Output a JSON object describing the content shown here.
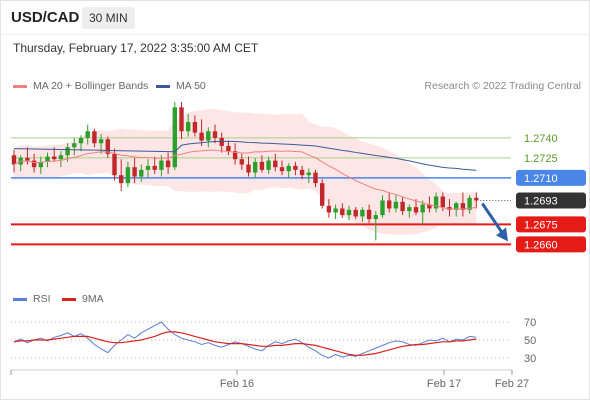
{
  "header": {
    "symbol": "USD/CAD",
    "timeframe": "30 MIN",
    "datetime": "Thursday, February 17, 2022 3:35:00 AM CET",
    "copyright": "Research © 2022 Trading Central"
  },
  "legend": {
    "bollinger": "MA 20 + Bollinger Bands",
    "ma50": "MA 50",
    "rsi": "RSI",
    "ma9": "9MA"
  },
  "colors": {
    "up": "#2ca02c",
    "down": "#c0282c",
    "bollinger": "#f4b3b3",
    "ma50": "#3a5a98",
    "support": "#e41b17",
    "pivot": "#4a86e8",
    "resistance": "#a8cf8a",
    "arrow": "#2e5fa8",
    "rsi": "#5b7fd6",
    "rsi_ma": "#d8231f"
  },
  "chart_data": {
    "type": "candlestick",
    "price_ylim": [
      1.264,
      1.2767
    ],
    "levels": [
      {
        "value": 1.274,
        "label": "1.2740",
        "kind": "resistance"
      },
      {
        "value": 1.2725,
        "label": "1.2725",
        "kind": "resistance"
      },
      {
        "value": 1.271,
        "label": "1.2710",
        "kind": "pivot"
      },
      {
        "value": 1.2693,
        "label": "1.2693",
        "kind": "current"
      },
      {
        "value": 1.2675,
        "label": "1.2675",
        "kind": "support"
      },
      {
        "value": 1.266,
        "label": "1.2660",
        "kind": "support"
      }
    ],
    "x_ticks": [
      "Feb 16",
      "Feb 17",
      "Feb 27"
    ],
    "rsi_ticks": [
      70,
      50,
      30
    ],
    "forecast": {
      "from": 1.2693,
      "to": 1.266
    },
    "candles": [
      [
        1.2727,
        1.2731,
        1.2714,
        1.272
      ],
      [
        1.272,
        1.2727,
        1.2715,
        1.2725
      ],
      [
        1.2725,
        1.2733,
        1.272,
        1.2723
      ],
      [
        1.2723,
        1.2728,
        1.2714,
        1.2718
      ],
      [
        1.2718,
        1.2726,
        1.2713,
        1.2722
      ],
      [
        1.2722,
        1.2729,
        1.2718,
        1.2726
      ],
      [
        1.2726,
        1.2733,
        1.2722,
        1.2724
      ],
      [
        1.2724,
        1.273,
        1.2718,
        1.2727
      ],
      [
        1.2727,
        1.2736,
        1.2722,
        1.2733
      ],
      [
        1.2733,
        1.274,
        1.2727,
        1.2736
      ],
      [
        1.2736,
        1.2742,
        1.273,
        1.274
      ],
      [
        1.274,
        1.275,
        1.2735,
        1.2745
      ],
      [
        1.2745,
        1.2747,
        1.2733,
        1.2736
      ],
      [
        1.2736,
        1.2743,
        1.2728,
        1.2739
      ],
      [
        1.2739,
        1.2741,
        1.2725,
        1.2728
      ],
      [
        1.2728,
        1.2732,
        1.2708,
        1.2712
      ],
      [
        1.2712,
        1.2724,
        1.27,
        1.2706
      ],
      [
        1.2706,
        1.2722,
        1.2703,
        1.2718
      ],
      [
        1.2718,
        1.2725,
        1.2706,
        1.2711
      ],
      [
        1.2711,
        1.272,
        1.2707,
        1.2716
      ],
      [
        1.2716,
        1.2724,
        1.271,
        1.2719
      ],
      [
        1.2719,
        1.2726,
        1.2713,
        1.2716
      ],
      [
        1.2716,
        1.2727,
        1.2711,
        1.2723
      ],
      [
        1.2723,
        1.2729,
        1.2713,
        1.2718
      ],
      [
        1.2718,
        1.2767,
        1.2716,
        1.2763
      ],
      [
        1.2763,
        1.2767,
        1.2739,
        1.2745
      ],
      [
        1.2745,
        1.2758,
        1.2741,
        1.2752
      ],
      [
        1.2752,
        1.2757,
        1.2741,
        1.2744
      ],
      [
        1.2744,
        1.2754,
        1.2734,
        1.2738
      ],
      [
        1.2738,
        1.2748,
        1.2733,
        1.2745
      ],
      [
        1.2745,
        1.275,
        1.2736,
        1.274
      ],
      [
        1.274,
        1.2744,
        1.2729,
        1.2734
      ],
      [
        1.2734,
        1.2738,
        1.2727,
        1.273
      ],
      [
        1.273,
        1.2736,
        1.272,
        1.2724
      ],
      [
        1.2724,
        1.2728,
        1.2716,
        1.272
      ],
      [
        1.272,
        1.2726,
        1.2711,
        1.2714
      ],
      [
        1.2714,
        1.2725,
        1.271,
        1.2722
      ],
      [
        1.2722,
        1.2727,
        1.2714,
        1.2716
      ],
      [
        1.2716,
        1.2726,
        1.2713,
        1.2723
      ],
      [
        1.2723,
        1.2728,
        1.2715,
        1.2718
      ],
      [
        1.2718,
        1.2723,
        1.2712,
        1.2715
      ],
      [
        1.2715,
        1.2721,
        1.271,
        1.2719
      ],
      [
        1.2719,
        1.2722,
        1.2712,
        1.2716
      ],
      [
        1.2716,
        1.2719,
        1.2709,
        1.2712
      ],
      [
        1.2712,
        1.2717,
        1.2706,
        1.2714
      ],
      [
        1.2714,
        1.2716,
        1.2703,
        1.2706
      ],
      [
        1.2706,
        1.2709,
        1.2687,
        1.2689
      ],
      [
        1.2689,
        1.2694,
        1.268,
        1.2684
      ],
      [
        1.2684,
        1.269,
        1.2679,
        1.2687
      ],
      [
        1.2687,
        1.2691,
        1.268,
        1.2682
      ],
      [
        1.2682,
        1.2689,
        1.2678,
        1.2686
      ],
      [
        1.2686,
        1.2688,
        1.2679,
        1.2681
      ],
      [
        1.2681,
        1.2688,
        1.2677,
        1.2686
      ],
      [
        1.2686,
        1.269,
        1.2676,
        1.2679
      ],
      [
        1.2679,
        1.2685,
        1.2663,
        1.2682
      ],
      [
        1.2682,
        1.2697,
        1.268,
        1.2693
      ],
      [
        1.2693,
        1.2699,
        1.2684,
        1.2687
      ],
      [
        1.2687,
        1.2697,
        1.2684,
        1.2692
      ],
      [
        1.2692,
        1.2696,
        1.2682,
        1.2685
      ],
      [
        1.2685,
        1.269,
        1.268,
        1.2688
      ],
      [
        1.2688,
        1.2694,
        1.2682,
        1.2684
      ],
      [
        1.2684,
        1.2693,
        1.2675,
        1.269
      ],
      [
        1.269,
        1.2696,
        1.2684,
        1.2687
      ],
      [
        1.2687,
        1.2699,
        1.2684,
        1.2696
      ],
      [
        1.2696,
        1.2699,
        1.2685,
        1.2688
      ],
      [
        1.2688,
        1.2694,
        1.2681,
        1.2686
      ],
      [
        1.2686,
        1.2692,
        1.2681,
        1.2691
      ],
      [
        1.2691,
        1.2699,
        1.2681,
        1.2686
      ],
      [
        1.2686,
        1.2697,
        1.2683,
        1.2695
      ],
      [
        1.2695,
        1.2699,
        1.2687,
        1.2693
      ]
    ],
    "rsi": [
      48,
      51,
      47,
      50,
      52,
      49,
      53,
      55,
      58,
      54,
      57,
      52,
      45,
      40,
      36,
      44,
      50,
      56,
      52,
      58,
      62,
      66,
      70,
      62,
      56,
      52,
      50,
      48,
      45,
      47,
      44,
      42,
      45,
      48,
      46,
      43,
      40,
      38,
      44,
      48,
      46,
      49,
      51,
      47,
      42,
      38,
      33,
      30,
      34,
      31,
      33,
      32,
      35,
      38,
      41,
      44,
      47,
      49,
      48,
      45,
      44,
      47,
      50,
      49,
      52,
      48,
      51,
      50,
      54,
      53
    ],
    "rsi_ma": [
      48,
      49,
      49,
      50,
      50,
      50,
      51,
      52,
      53,
      54,
      54,
      54,
      52,
      50,
      48,
      47,
      47,
      48,
      49,
      50,
      52,
      54,
      57,
      59,
      59,
      58,
      56,
      54,
      52,
      50,
      48,
      47,
      46,
      46,
      46,
      45,
      44,
      43,
      43,
      44,
      44,
      45,
      46,
      46,
      45,
      44,
      42,
      40,
      38,
      36,
      34,
      33,
      33,
      34,
      35,
      37,
      39,
      41,
      43,
      44,
      45,
      45,
      46,
      47,
      48,
      48,
      49,
      49,
      50,
      51
    ]
  }
}
